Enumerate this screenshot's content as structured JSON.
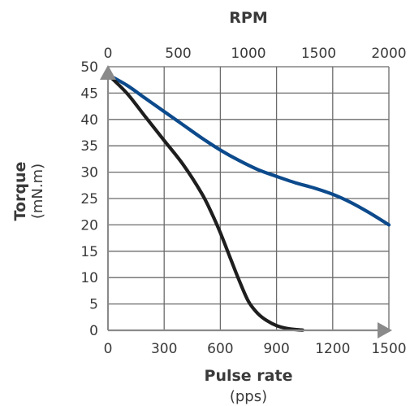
{
  "chart_data": {
    "type": "line",
    "title": "",
    "top_axis": {
      "label": "RPM",
      "ticks": [
        "0",
        "500",
        "1000",
        "1500",
        "2000"
      ],
      "range": [
        0,
        2000
      ]
    },
    "x_axis": {
      "label": "Pulse rate",
      "unit": "(pps)",
      "ticks": [
        "0",
        "300",
        "600",
        "900",
        "1200",
        "1500"
      ],
      "range": [
        0,
        1500
      ]
    },
    "y_axis": {
      "label": "Torque",
      "unit": "(mN.m)",
      "ticks": [
        "0",
        "5",
        "10",
        "15",
        "20",
        "25",
        "30",
        "35",
        "40",
        "45",
        "50"
      ],
      "range": [
        0,
        50
      ]
    },
    "grid": true,
    "series": [
      {
        "color": "#0c4a8c",
        "x": [
          0,
          100,
          200,
          300,
          400,
          500,
          600,
          700,
          800,
          900,
          1000,
          1100,
          1200,
          1300,
          1400,
          1500
        ],
        "y": [
          48.5,
          46.5,
          44,
          41.5,
          39,
          36.5,
          34.2,
          32.2,
          30.5,
          29.2,
          28,
          27,
          25.8,
          24.2,
          22.2,
          20
        ]
      },
      {
        "color": "#1e1e1e",
        "x": [
          0,
          100,
          200,
          300,
          400,
          500,
          550,
          600,
          650,
          700,
          750,
          800,
          850,
          900,
          950,
          1000,
          1040
        ],
        "y": [
          48.5,
          45,
          40.5,
          36,
          31.5,
          26,
          22.5,
          18.5,
          14,
          9.5,
          5.5,
          3.2,
          1.8,
          0.9,
          0.4,
          0.15,
          0.05
        ]
      }
    ]
  }
}
